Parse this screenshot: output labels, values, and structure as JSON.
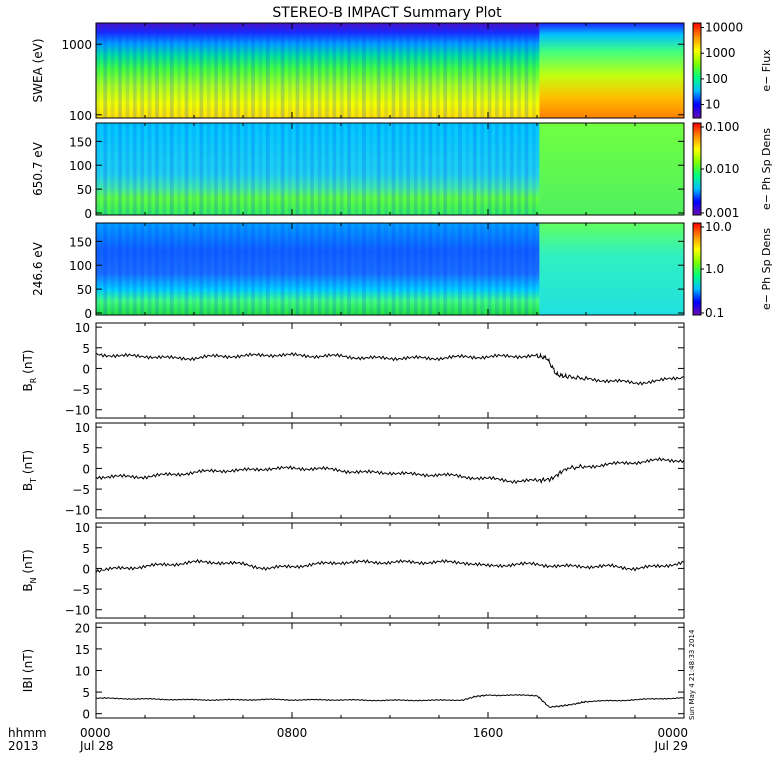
{
  "title": "STEREO-B IMPACT Summary Plot",
  "footer": {
    "left_label_1": "hhmm",
    "left_label_2": "2013",
    "stamp": "Sun May  4 21:48:33 2014"
  },
  "x_axis": {
    "ticks": [
      {
        "hour": 0,
        "label": "0000",
        "sublabel": "Jul 28"
      },
      {
        "hour": 8,
        "label": "0800",
        "sublabel": ""
      },
      {
        "hour": 16,
        "label": "1600",
        "sublabel": ""
      },
      {
        "hour": 24,
        "label": "0000",
        "sublabel": "Jul 29"
      }
    ],
    "range_hours": [
      0,
      24
    ]
  },
  "colors": {
    "axis": "#000000",
    "line": "#000000",
    "colormap": [
      "#6a0dad",
      "#0000ff",
      "#00bfff",
      "#00ff7f",
      "#7fff00",
      "#ffff00",
      "#ff8c00",
      "#ff0000"
    ]
  },
  "chart_data": [
    {
      "type": "heatmap",
      "id": "swea",
      "ylabel": "SWEA (eV)",
      "yscale": "log",
      "ylim": [
        90,
        2000
      ],
      "yticks": [
        "1000",
        "100"
      ],
      "colorbar_label": "e− Flux",
      "colorbar_ticks": [
        "10000",
        "1000",
        "100",
        "10"
      ],
      "colorbar_range": [
        3,
        15000
      ],
      "colorbar_scale": "log"
    },
    {
      "type": "heatmap",
      "id": "pad650",
      "ylabel": "650.7 eV",
      "ylim": [
        0,
        180
      ],
      "yticks": [
        "150",
        "100",
        "50",
        "0"
      ],
      "colorbar_label": "e− Ph Sp Dens",
      "colorbar_ticks": [
        "0.100",
        "0.010",
        "0.001"
      ],
      "colorbar_range": [
        0.001,
        0.1
      ],
      "colorbar_scale": "log"
    },
    {
      "type": "heatmap",
      "id": "pad246",
      "ylabel": "246.6 eV",
      "ylim": [
        0,
        180
      ],
      "yticks": [
        "150",
        "100",
        "50",
        "0"
      ],
      "colorbar_label": "e− Ph Sp Dens",
      "colorbar_ticks": [
        "10.0",
        "1.0",
        "0.1"
      ],
      "colorbar_range": [
        0.1,
        10
      ],
      "colorbar_scale": "log"
    },
    {
      "type": "line",
      "id": "br",
      "ylabel": "B",
      "ylabel_sub": "R",
      "ylabel_unit": "(nT)",
      "ylim": [
        -12,
        11
      ],
      "yticks": [
        "10",
        "5",
        "0",
        "−5",
        "−10"
      ],
      "ytick_values": [
        10,
        5,
        0,
        -5,
        -10
      ],
      "x": [
        0,
        1,
        2,
        3,
        4,
        5,
        6,
        7,
        8,
        9,
        10,
        11,
        12,
        13,
        14,
        15,
        16,
        17,
        18,
        18.4,
        18.8,
        19.2,
        20,
        21,
        22,
        23,
        24
      ],
      "values": [
        3.5,
        3,
        3,
        2.5,
        2.5,
        3,
        3,
        3.3,
        3.2,
        3,
        3,
        2.5,
        2.5,
        2.5,
        2.5,
        2.8,
        2.8,
        3,
        3,
        2.5,
        -1.5,
        -2,
        -2.5,
        -3,
        -3.5,
        -3,
        -2
      ]
    },
    {
      "type": "line",
      "id": "bt",
      "ylabel": "B",
      "ylabel_sub": "T",
      "ylabel_unit": "(nT)",
      "ylim": [
        -12,
        11
      ],
      "yticks": [
        "10",
        "5",
        "0",
        "−5",
        "−10"
      ],
      "ytick_values": [
        10,
        5,
        0,
        -5,
        -10
      ],
      "x": [
        0,
        1,
        2,
        3,
        4,
        5,
        6,
        7,
        8,
        9,
        10,
        11,
        12,
        13,
        14,
        15,
        16,
        17,
        18,
        18.6,
        19.2,
        20,
        21,
        22,
        23,
        24
      ],
      "values": [
        -2,
        -2,
        -2,
        -1.5,
        -1,
        -0.5,
        -0.5,
        0,
        0,
        0,
        -0.5,
        -1,
        -1,
        -1.5,
        -1.5,
        -2,
        -2.5,
        -3,
        -3,
        -2.5,
        0,
        0.5,
        1,
        1.5,
        2,
        2
      ]
    },
    {
      "type": "line",
      "id": "bn",
      "ylabel": "B",
      "ylabel_sub": "N",
      "ylabel_unit": "(nT)",
      "ylim": [
        -12,
        11
      ],
      "yticks": [
        "10",
        "5",
        "0",
        "−5",
        "−10"
      ],
      "ytick_values": [
        10,
        5,
        0,
        -5,
        -10
      ],
      "x": [
        0,
        1,
        2,
        3,
        4,
        5,
        6,
        7,
        8,
        9,
        10,
        11,
        12,
        13,
        14,
        15,
        16,
        17,
        18,
        19,
        20,
        21,
        22,
        23,
        24
      ],
      "values": [
        -0.5,
        0,
        0.5,
        1,
        1.5,
        1.5,
        1,
        0,
        0.5,
        1,
        1.5,
        1.5,
        1.5,
        1.5,
        1.5,
        1.5,
        0.5,
        1,
        1,
        0.5,
        0.5,
        0.5,
        0,
        0.5,
        1.5
      ]
    },
    {
      "type": "line",
      "id": "bmag",
      "ylabel": "IBI (nT)",
      "ylim": [
        -1,
        21
      ],
      "yticks": [
        "20",
        "15",
        "10",
        "5",
        "0"
      ],
      "ytick_values": [
        20,
        15,
        10,
        5,
        0
      ],
      "x": [
        0,
        1,
        2,
        3,
        4,
        5,
        6,
        7,
        8,
        9,
        10,
        11,
        12,
        13,
        14,
        15,
        15.5,
        16,
        17,
        18,
        18.5,
        19,
        19.5,
        20,
        21,
        22,
        23,
        24
      ],
      "values": [
        3.6,
        3.5,
        3.4,
        3.3,
        3.2,
        3.2,
        3.2,
        3.3,
        3.2,
        3.2,
        3.2,
        3.1,
        3.1,
        3.1,
        3.1,
        3.2,
        4,
        4.3,
        4.3,
        4.2,
        1.5,
        1.8,
        2.2,
        2.8,
        3,
        3.2,
        3.5,
        3.6
      ]
    }
  ]
}
